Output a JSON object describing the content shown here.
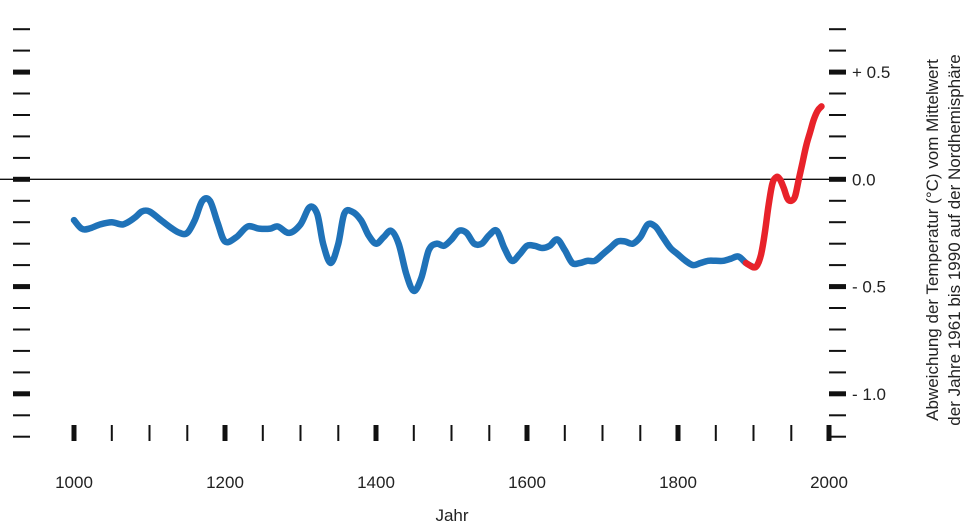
{
  "chart_data": {
    "type": "line",
    "title": "",
    "xlabel": "Jahr",
    "ylabel_lines": [
      "Abweichung der Temperatur (°C) vom Mittelwert",
      "der Jahre 1961 bis 1990 auf der Nordhemisphäre"
    ],
    "xlim": [
      1000,
      2000
    ],
    "ylim": [
      -1.22,
      0.78
    ],
    "x_ticks": [
      1000,
      1200,
      1400,
      1600,
      1800,
      2000
    ],
    "x_tick_labels": [
      "1000",
      "1200",
      "1400",
      "1600",
      "1800",
      "2000"
    ],
    "y_ticks": [
      0.5,
      0.0,
      -0.5,
      -1.0
    ],
    "y_tick_labels": [
      "+ 0.5",
      "0.0",
      "- 0.5",
      "- 1.0"
    ],
    "zero_line": true,
    "grid": false,
    "series": [
      {
        "color": "#1f72b8",
        "x": [
          1000,
          1010,
          1020,
          1035,
          1050,
          1065,
          1080,
          1090,
          1100,
          1115,
          1130,
          1140,
          1150,
          1160,
          1170,
          1180,
          1190,
          1200,
          1215,
          1230,
          1245,
          1260,
          1270,
          1285,
          1300,
          1312,
          1322,
          1330,
          1340,
          1350,
          1358,
          1368,
          1380,
          1390,
          1400,
          1410,
          1420,
          1430,
          1440,
          1450,
          1460,
          1470,
          1480,
          1490,
          1500,
          1510,
          1520,
          1530,
          1540,
          1550,
          1560,
          1570,
          1580,
          1590,
          1600,
          1610,
          1620,
          1630,
          1640,
          1650,
          1660,
          1670,
          1680,
          1690,
          1700,
          1710,
          1720,
          1730,
          1740,
          1750,
          1760,
          1770,
          1780,
          1790,
          1800,
          1810,
          1820,
          1830,
          1840,
          1850,
          1860,
          1870,
          1880,
          1890,
          1900
        ],
        "y": [
          -0.19,
          -0.23,
          -0.23,
          -0.21,
          -0.2,
          -0.21,
          -0.18,
          -0.15,
          -0.15,
          -0.19,
          -0.23,
          -0.25,
          -0.25,
          -0.19,
          -0.1,
          -0.1,
          -0.2,
          -0.29,
          -0.27,
          -0.22,
          -0.23,
          -0.23,
          -0.22,
          -0.25,
          -0.21,
          -0.13,
          -0.16,
          -0.3,
          -0.39,
          -0.3,
          -0.16,
          -0.15,
          -0.19,
          -0.26,
          -0.3,
          -0.27,
          -0.24,
          -0.3,
          -0.44,
          -0.52,
          -0.46,
          -0.33,
          -0.3,
          -0.31,
          -0.28,
          -0.24,
          -0.25,
          -0.3,
          -0.3,
          -0.26,
          -0.24,
          -0.32,
          -0.38,
          -0.35,
          -0.31,
          -0.31,
          -0.32,
          -0.31,
          -0.28,
          -0.33,
          -0.39,
          -0.39,
          -0.38,
          -0.38,
          -0.35,
          -0.32,
          -0.29,
          -0.29,
          -0.3,
          -0.27,
          -0.21,
          -0.22,
          -0.27,
          -0.32,
          -0.35,
          -0.38,
          -0.4,
          -0.39,
          -0.38,
          -0.38,
          -0.38,
          -0.37,
          -0.36,
          -0.39,
          -0.41
        ]
      },
      {
        "color": "#e8222a",
        "x": [
          1890,
          1900,
          1905,
          1910,
          1915,
          1920,
          1925,
          1930,
          1935,
          1940,
          1945,
          1950,
          1955,
          1960,
          1965,
          1970,
          1975,
          1980,
          1985,
          1990
        ],
        "y": [
          -0.39,
          -0.41,
          -0.4,
          -0.35,
          -0.25,
          -0.12,
          -0.02,
          0.01,
          0.0,
          -0.04,
          -0.09,
          -0.1,
          -0.08,
          0.0,
          0.08,
          0.16,
          0.22,
          0.28,
          0.32,
          0.34
        ]
      }
    ]
  }
}
